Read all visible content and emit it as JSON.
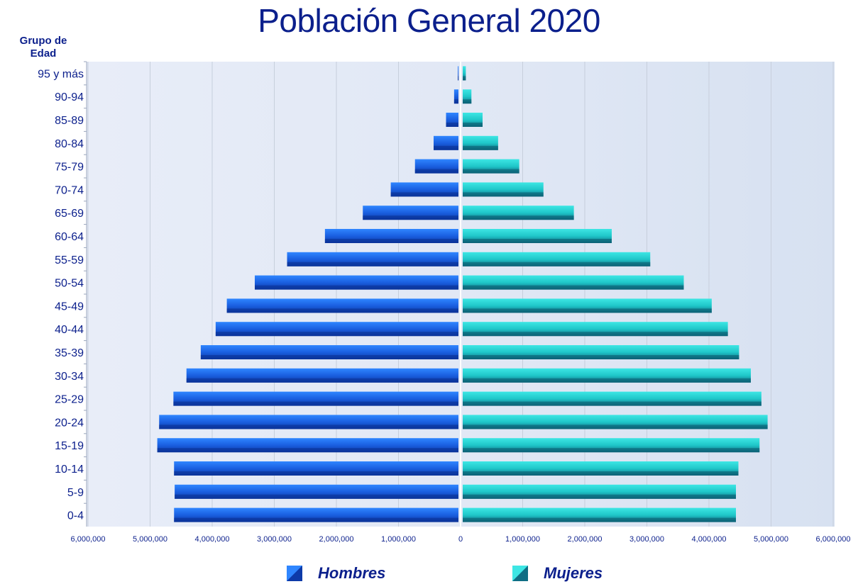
{
  "chart_data": {
    "type": "bar",
    "orientation": "horizontal-pyramid",
    "title": "Población General 2020",
    "ylabel": "Grupo de Edad",
    "categories": [
      "0-4",
      "5-9",
      "10-14",
      "15-19",
      "20-24",
      "25-29",
      "30-34",
      "35-39",
      "40-44",
      "45-49",
      "50-54",
      "55-59",
      "60-64",
      "65-69",
      "70-74",
      "75-79",
      "80-84",
      "85-89",
      "90-94",
      "95 y más"
    ],
    "series": [
      {
        "name": "Hombres",
        "color": "#1a5fe0",
        "values": [
          4580000,
          4570000,
          4580000,
          4850000,
          4820000,
          4590000,
          4380000,
          4150000,
          3910000,
          3730000,
          3280000,
          2760000,
          2150000,
          1540000,
          1090000,
          700000,
          400000,
          200000,
          70000,
          10000
        ]
      },
      {
        "name": "Mujeres",
        "color": "#1fc7c9",
        "values": [
          4400000,
          4400000,
          4440000,
          4780000,
          4910000,
          4810000,
          4640000,
          4450000,
          4270000,
          4010000,
          3560000,
          3020000,
          2400000,
          1790000,
          1300000,
          910000,
          570000,
          320000,
          140000,
          50000
        ]
      }
    ],
    "x_tick_labels": [
      "6,000,000",
      "5,000,000",
      "4,000,000",
      "3,000,000",
      "2,000,000",
      "1,000,000",
      "0",
      "1,000,000",
      "2,000,000",
      "3,000,000",
      "4,000,000",
      "5,000,000",
      "6,000,000"
    ],
    "xlim": [
      -6000000,
      6000000
    ],
    "grid": true,
    "legend_position": "bottom"
  },
  "colors": {
    "title": "#0b1f8c",
    "text": "#0b1f8c",
    "plot_bg": "#e4eaf5",
    "hombres": "#1a5fe0",
    "mujeres": "#1fc7c9"
  },
  "legend": {
    "hombres_label": "Hombres",
    "mujeres_label": "Mujeres"
  }
}
